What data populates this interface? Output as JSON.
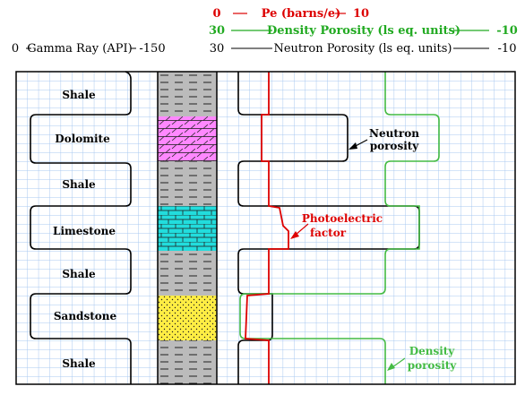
{
  "header": {
    "pe": {
      "left": "0",
      "label": "Pe (barns/e)",
      "right": "10",
      "color": "#dd0000"
    },
    "density": {
      "left": "30",
      "label": "Density Porosity (ls eq. units)",
      "right": "-10",
      "color": "#22aa22"
    },
    "neutron": {
      "left": "30",
      "label": "Neutron Porosity (ls eq. units)",
      "right": "-10",
      "color": "#000000"
    },
    "gamma": {
      "left": "0",
      "label": "Gamma Ray (API)",
      "right": "-150",
      "color": "#000000"
    }
  },
  "lithology": [
    "Shale",
    "Dolomite",
    "Shale",
    "Limestone",
    "Shale",
    "Sandstone",
    "Shale"
  ],
  "fill_colors": {
    "shale": "#bbbbbb",
    "dolomite": "#ff88ff",
    "limestone": "#22dddd",
    "sandstone": "#ffee44",
    "grid": "#a8c8f0"
  },
  "annotations": {
    "neutron_line1": "Neutron",
    "neutron_line2": "porosity",
    "pe_line1": "Photoelectric",
    "pe_line2": "factor",
    "density_line1": "Density",
    "density_line2": "porosity"
  }
}
